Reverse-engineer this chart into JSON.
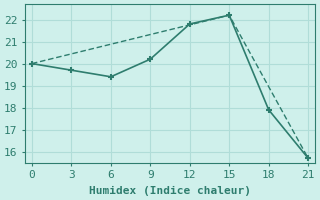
{
  "line1_x": [
    0,
    3,
    6,
    9,
    12,
    15,
    18,
    21
  ],
  "line1_y": [
    20.0,
    19.7,
    19.4,
    20.2,
    21.8,
    22.2,
    17.9,
    15.7
  ],
  "line2_x": [
    0,
    15,
    21
  ],
  "line2_y": [
    20.0,
    22.2,
    15.7
  ],
  "line_color": "#2e7d6e",
  "bg_color": "#cff0eb",
  "grid_color": "#b0ddd8",
  "xlabel": "Humidex (Indice chaleur)",
  "xlim": [
    -0.5,
    21.5
  ],
  "ylim": [
    15.5,
    22.7
  ],
  "xticks": [
    0,
    3,
    6,
    9,
    12,
    15,
    18,
    21
  ],
  "yticks": [
    16,
    17,
    18,
    19,
    20,
    21,
    22
  ],
  "marker": "+",
  "marker_size": 5,
  "linewidth1": 1.2,
  "linewidth2": 1.0,
  "font_size": 8
}
